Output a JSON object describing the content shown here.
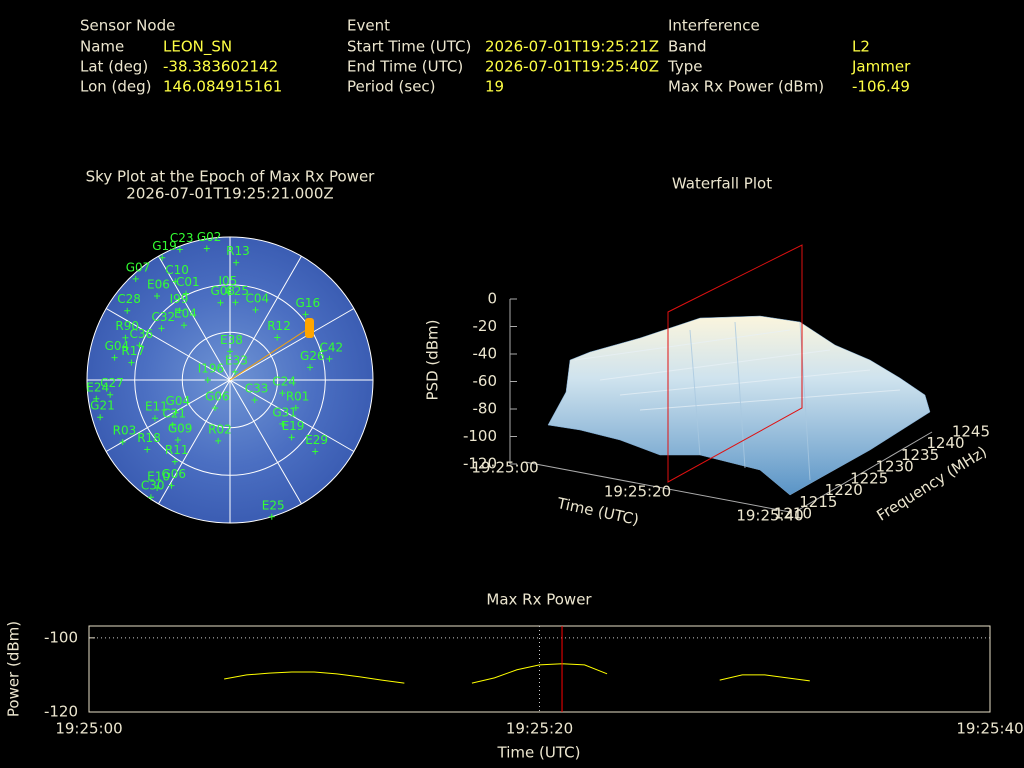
{
  "info": {
    "sensor": {
      "title": "Sensor Node",
      "rows": [
        [
          "Name",
          "LEON_SN"
        ],
        [
          "Lat (deg)",
          "-38.383602142"
        ],
        [
          "Lon (deg)",
          "146.084915161"
        ]
      ]
    },
    "event": {
      "title": "Event",
      "rows": [
        [
          "Start Time (UTC)",
          "2026-07-01T19:25:21Z"
        ],
        [
          "End Time (UTC)",
          "2026-07-01T19:25:40Z"
        ],
        [
          "Period (sec)",
          "19"
        ]
      ]
    },
    "interference": {
      "title": "Interference",
      "rows": [
        [
          "Band",
          "L2"
        ],
        [
          "Type",
          "Jammer"
        ],
        [
          "Max Rx Power (dBm)",
          "-106.49"
        ]
      ]
    }
  },
  "chart_data": [
    {
      "type": "sky",
      "title": "Sky Plot at the Epoch of Max Rx Power",
      "subtitle": "2026-07-01T19:25:21.000Z",
      "color": "#33ff33",
      "satellites": [
        {
          "name": "C23",
          "azimuth": 339,
          "elevation": 2
        },
        {
          "name": "G02",
          "azimuth": 350,
          "elevation": 6
        },
        {
          "name": "G19",
          "azimuth": 331,
          "elevation": 2
        },
        {
          "name": "R13",
          "azimuth": 3,
          "elevation": 16
        },
        {
          "name": "G07",
          "azimuth": 317,
          "elevation": 3
        },
        {
          "name": "C10",
          "azimuth": 331,
          "elevation": 19
        },
        {
          "name": "C01",
          "azimuth": 333,
          "elevation": 29
        },
        {
          "name": "I05",
          "azimuth": 359,
          "elevation": 35
        },
        {
          "name": "E06",
          "azimuth": 319,
          "elevation": 20
        },
        {
          "name": "G08",
          "azimuth": 353,
          "elevation": 41
        },
        {
          "name": "C25",
          "azimuth": 4,
          "elevation": 41
        },
        {
          "name": "I99",
          "azimuth": 324,
          "elevation": 36
        },
        {
          "name": "C04",
          "azimuth": 20,
          "elevation": 43
        },
        {
          "name": "C28",
          "azimuth": 304,
          "elevation": 12
        },
        {
          "name": "E04",
          "azimuth": 320,
          "elevation": 45
        },
        {
          "name": "C32",
          "azimuth": 307,
          "elevation": 36
        },
        {
          "name": "G16",
          "azimuth": 49,
          "elevation": 27
        },
        {
          "name": "R12",
          "azimuth": 48,
          "elevation": 50
        },
        {
          "name": "C42",
          "azimuth": 78,
          "elevation": 26
        },
        {
          "name": "G26",
          "azimuth": 81,
          "elevation": 39
        },
        {
          "name": "E38",
          "azimuth": 0,
          "elevation": 72
        },
        {
          "name": "R90",
          "azimuth": 292,
          "elevation": 19
        },
        {
          "name": "C36",
          "azimuth": 291,
          "elevation": 29
        },
        {
          "name": "G04",
          "azimuth": 281,
          "elevation": 16
        },
        {
          "name": "R17",
          "azimuth": 280,
          "elevation": 27
        },
        {
          "name": "E33",
          "azimuth": 32,
          "elevation": 84
        },
        {
          "name": "I196",
          "azimuth": 270,
          "elevation": 76
        },
        {
          "name": "C33",
          "azimuth": 129,
          "elevation": 70
        },
        {
          "name": "C24",
          "azimuth": 104,
          "elevation": 56
        },
        {
          "name": "R01",
          "azimuth": 113,
          "elevation": 45
        },
        {
          "name": "C27",
          "azimuth": 263,
          "elevation": 14
        },
        {
          "name": "E24",
          "azimuth": 262,
          "elevation": 5
        },
        {
          "name": "G21",
          "azimuth": 254,
          "elevation": 5
        },
        {
          "name": "E11",
          "azimuth": 243,
          "elevation": 37
        },
        {
          "name": "G04",
          "azimuth": 239,
          "elevation": 50
        },
        {
          "name": "C21",
          "azimuth": 232,
          "elevation": 44
        },
        {
          "name": "G06",
          "azimuth": 208,
          "elevation": 70
        },
        {
          "name": "G31",
          "azimuth": 130,
          "elevation": 47
        },
        {
          "name": "E19",
          "azimuth": 133,
          "elevation": 37
        },
        {
          "name": "R03",
          "azimuth": 240,
          "elevation": 12
        },
        {
          "name": "G09",
          "azimuth": 221,
          "elevation": 40
        },
        {
          "name": "R02",
          "azimuth": 191,
          "elevation": 51
        },
        {
          "name": "R18",
          "azimuth": 230,
          "elevation": 22
        },
        {
          "name": "E29",
          "azimuth": 130,
          "elevation": 20
        },
        {
          "name": "R11",
          "azimuth": 214,
          "elevation": 28
        },
        {
          "name": "G06",
          "azimuth": 209,
          "elevation": 14
        },
        {
          "name": "E10",
          "azimuth": 214,
          "elevation": 8
        },
        {
          "name": "C30",
          "azimuth": 214,
          "elevation": 1
        },
        {
          "name": "E25",
          "azimuth": 163,
          "elevation": 0
        }
      ]
    },
    {
      "type": "surface",
      "title": "Waterfall Plot",
      "zlabel": "PSD (dBm)",
      "xlabel": "Time (UTC)",
      "ylabel": "Frequency (MHz)",
      "xticks": [
        "19:25:00",
        "19:25:20",
        "19:25:40"
      ],
      "yticks": [
        1210,
        1215,
        1220,
        1225,
        1230,
        1235,
        1240,
        1245
      ],
      "zlim": [
        -120,
        0
      ],
      "zticks": [
        0,
        -20,
        -40,
        -60,
        -80,
        -100,
        -120
      ]
    },
    {
      "type": "line",
      "title": "Max Rx Power",
      "xlabel": "Time (UTC)",
      "ylabel": "Power (dBm)",
      "categories": [
        "19:25:00",
        null,
        null,
        null,
        null,
        null,
        null,
        null,
        null,
        null,
        null,
        null,
        null,
        null,
        null,
        null,
        null,
        null,
        null,
        null,
        "19:25:20",
        null,
        null,
        null,
        null,
        null,
        null,
        null,
        null,
        null,
        null,
        null,
        null,
        null,
        null,
        null,
        null,
        null,
        null,
        null,
        "19:25:40"
      ],
      "values": [
        null,
        null,
        null,
        null,
        null,
        null,
        -111.1,
        -110.0,
        -109.5,
        -109.2,
        -109.2,
        -109.7,
        -110.5,
        -111.4,
        -112.2,
        null,
        null,
        -112.2,
        -110.8,
        -108.6,
        -107.3,
        -107.0,
        -107.3,
        -109.7,
        null,
        null,
        null,
        null,
        -111.4,
        -110.0,
        -110.0,
        -110.8,
        -111.6,
        null,
        null,
        null,
        null,
        null,
        null,
        null,
        null
      ],
      "color": "#ffff00",
      "ylim": [
        -120,
        -96.8
      ],
      "yticks": [
        -120,
        -100
      ],
      "grid": true,
      "marker_index": 21,
      "marker_color": "#ff0000"
    }
  ]
}
